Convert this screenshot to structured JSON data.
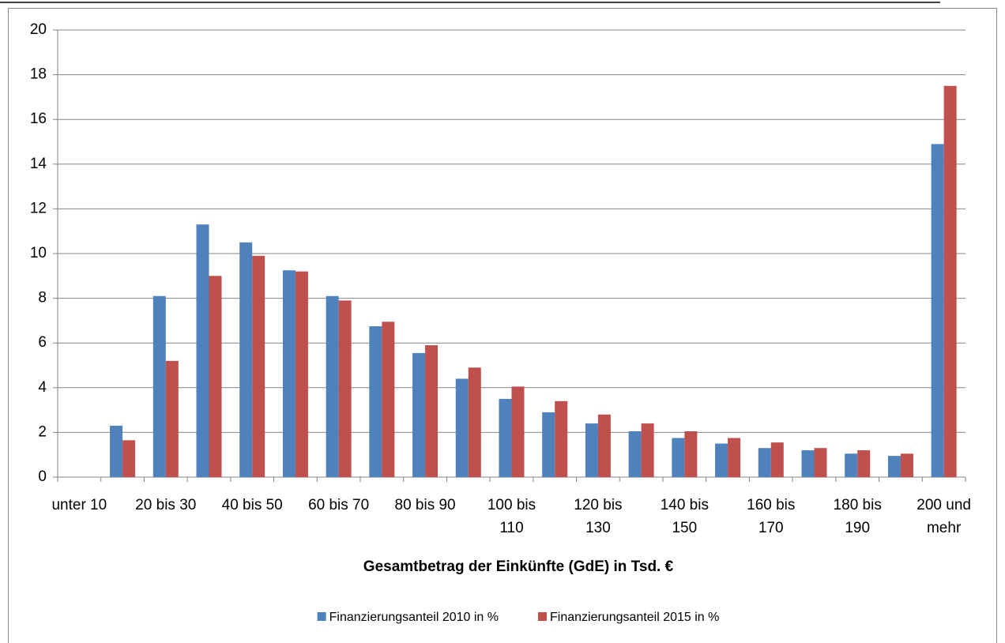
{
  "chart_data": {
    "type": "bar",
    "x_label": "Gesamtbetrag der Einkünfte (GdE) in Tsd. €",
    "categories": [
      "unter 10",
      null,
      "20 bis 30",
      null,
      "40 bis 50",
      null,
      "60 bis 70",
      null,
      "80 bis 90",
      null,
      "100 bis 110",
      null,
      "120 bis 130",
      null,
      "140 bis 150",
      null,
      "160 bis 170",
      null,
      "180 bis 190",
      null,
      "200 und mehr"
    ],
    "series": [
      {
        "name": "Finanzierungsanteil 2010 in %",
        "color": "#4f81bd",
        "values": [
          0,
          2.3,
          8.1,
          11.3,
          10.5,
          9.25,
          8.1,
          6.75,
          5.55,
          4.4,
          3.5,
          2.9,
          2.4,
          2.05,
          1.75,
          1.5,
          1.3,
          1.2,
          1.05,
          0.95,
          14.9
        ]
      },
      {
        "name": "Finanzierungsanteil 2015 in %",
        "color": "#c0504d",
        "values": [
          0,
          1.65,
          5.2,
          9.0,
          9.9,
          9.2,
          7.9,
          6.95,
          5.9,
          4.9,
          4.05,
          3.4,
          2.8,
          2.4,
          2.05,
          1.75,
          1.55,
          1.3,
          1.2,
          1.05,
          17.5
        ]
      }
    ],
    "ylim": [
      0,
      20
    ],
    "yticks": [
      0,
      2,
      4,
      6,
      8,
      10,
      12,
      14,
      16,
      18,
      20
    ],
    "grid": true,
    "legend": "bottom"
  }
}
